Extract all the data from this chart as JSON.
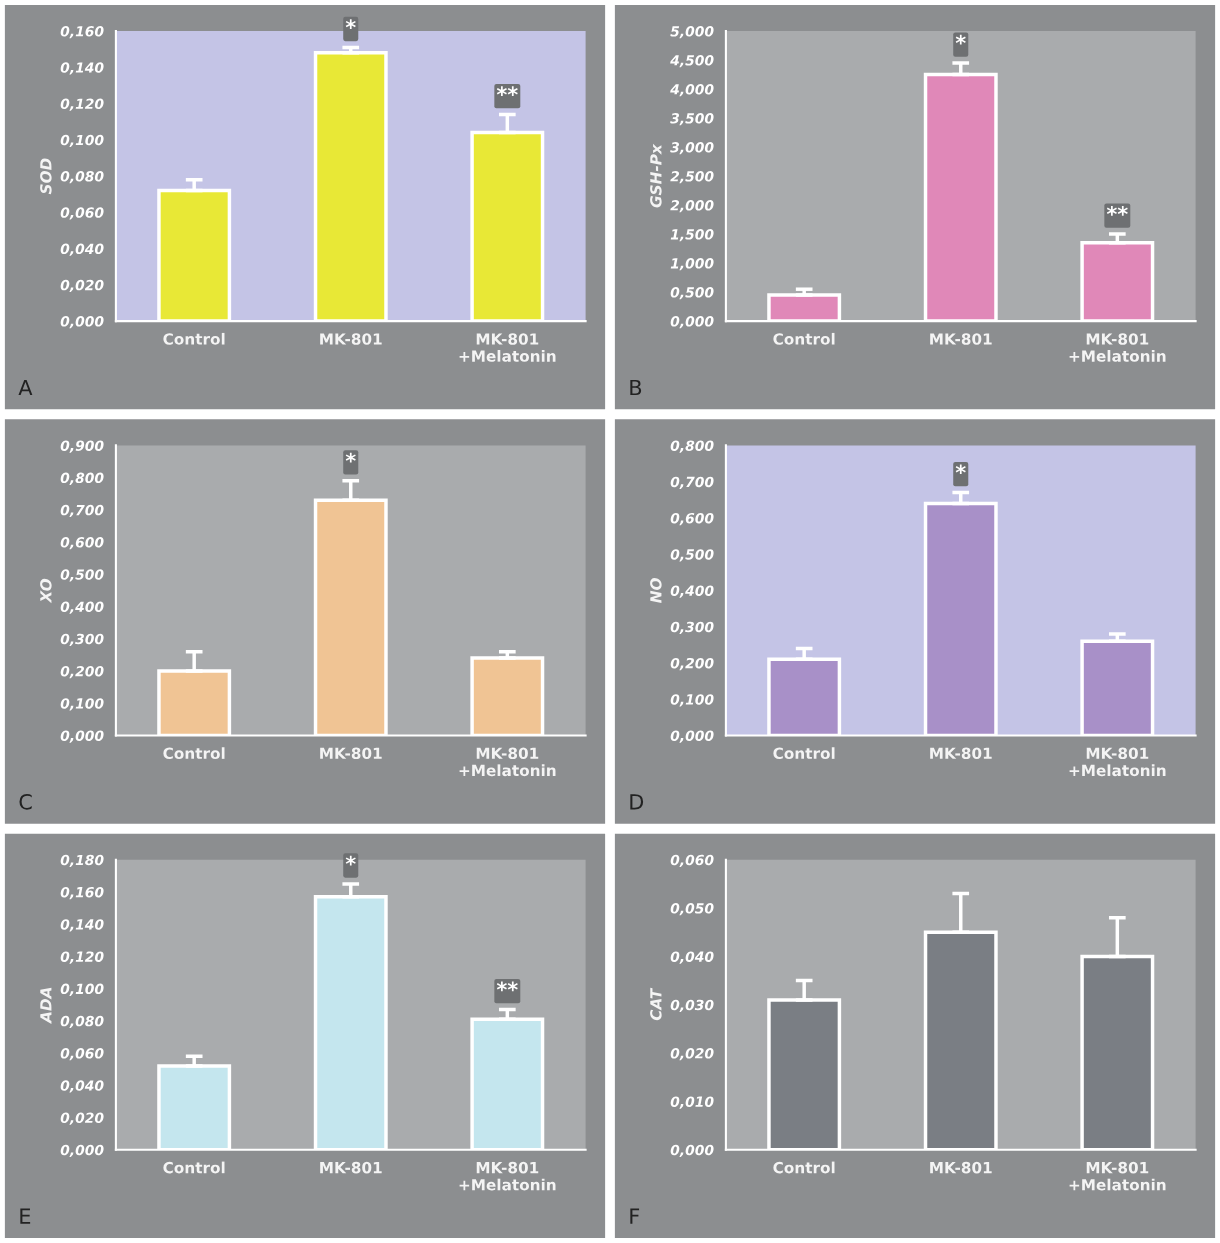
{
  "chart_data": [
    {
      "type": "bar",
      "ylabel": "SOD",
      "categories": [
        "Control",
        "MK-801",
        "MK-801\n+Melatonin"
      ],
      "values": [
        0.072,
        0.148,
        0.104
      ],
      "errors": [
        [
          0.072,
          0.078
        ],
        [
          0.148,
          0.151
        ],
        [
          0.104,
          0.114
        ]
      ],
      "color": "#e8e836",
      "ylim": [
        0,
        0.16
      ],
      "yticks": [
        {
          "value": 0,
          "label": "0,000"
        },
        {
          "value": 0.02,
          "label": "0,020"
        },
        {
          "value": 0.04,
          "label": "0,040"
        },
        {
          "value": 0.06,
          "label": "0,060"
        },
        {
          "value": 0.08,
          "label": "0,080"
        },
        {
          "value": 0.1,
          "label": "0,100"
        },
        {
          "value": 0.12,
          "label": "0,120"
        },
        {
          "value": 0.14,
          "label": "0,140"
        },
        {
          "value": 0.16,
          "label": "0,160"
        }
      ],
      "annotations": [
        {
          "text": "*",
          "x": "MK-801",
          "y": 0.151
        },
        {
          "text": "**",
          "x": "MK-801\n+Melatonin",
          "y": 0.114
        },
        "A"
      ]
    },
    {
      "type": "bar",
      "ylabel": "GSH-Px",
      "categories": [
        "Control",
        "MK-801",
        "MK-801\n+Melatonin"
      ],
      "values": [
        0.45,
        4.25,
        1.35
      ],
      "errors": [
        [
          0.45,
          0.55
        ],
        [
          4.25,
          4.45
        ],
        [
          1.35,
          1.5
        ]
      ],
      "color": "#e088b8",
      "ylim": [
        0,
        5
      ],
      "yticks": [
        {
          "value": 0,
          "label": "0,000"
        },
        {
          "value": 0.5,
          "label": "0,500"
        },
        {
          "value": 1,
          "label": "1,000"
        },
        {
          "value": 1.5,
          "label": "1,500"
        },
        {
          "value": 2,
          "label": "2,000"
        },
        {
          "value": 2.5,
          "label": "2,500"
        },
        {
          "value": 3,
          "label": "3,000"
        },
        {
          "value": 3.5,
          "label": "3,500"
        },
        {
          "value": 4,
          "label": "4,000"
        },
        {
          "value": 4.5,
          "label": "4,500"
        },
        {
          "value": 5,
          "label": "5,000"
        }
      ],
      "annotations": [
        {
          "text": "*",
          "x": "MK-801",
          "y": 4.45
        },
        {
          "text": "**",
          "x": "MK-801\n+Melatonin",
          "y": 1.5
        },
        "B"
      ]
    },
    {
      "type": "bar",
      "ylabel": "XO",
      "categories": [
        "Control",
        "MK-801",
        "MK-801\n+Melatonin"
      ],
      "values": [
        0.2,
        0.73,
        0.24
      ],
      "errors": [
        [
          0.2,
          0.26
        ],
        [
          0.73,
          0.79
        ],
        [
          0.24,
          0.26
        ]
      ],
      "color": "#f0c494",
      "ylim": [
        0,
        0.9
      ],
      "yticks": [
        {
          "value": 0,
          "label": "0,000"
        },
        {
          "value": 0.1,
          "label": "0,100"
        },
        {
          "value": 0.2,
          "label": "0,200"
        },
        {
          "value": 0.3,
          "label": "0,300"
        },
        {
          "value": 0.4,
          "label": "0,400"
        },
        {
          "value": 0.5,
          "label": "0,500"
        },
        {
          "value": 0.6,
          "label": "0,600"
        },
        {
          "value": 0.7,
          "label": "0,700"
        },
        {
          "value": 0.8,
          "label": "0,800"
        },
        {
          "value": 0.9,
          "label": "0,900"
        }
      ],
      "annotations": [
        {
          "text": "*",
          "x": "MK-801",
          "y": 0.79
        },
        "C"
      ]
    },
    {
      "type": "bar",
      "ylabel": "NO",
      "categories": [
        "Control",
        "MK-801",
        "MK-801\n+Melatonin"
      ],
      "values": [
        0.21,
        0.64,
        0.26
      ],
      "errors": [
        [
          0.21,
          0.24
        ],
        [
          0.64,
          0.67
        ],
        [
          0.26,
          0.28
        ]
      ],
      "color": "#a890c8",
      "ylim": [
        0,
        0.8
      ],
      "yticks": [
        {
          "value": 0,
          "label": "0,000"
        },
        {
          "value": 0.1,
          "label": "0,100"
        },
        {
          "value": 0.2,
          "label": "0,200"
        },
        {
          "value": 0.3,
          "label": "0,300"
        },
        {
          "value": 0.4,
          "label": "0,400"
        },
        {
          "value": 0.5,
          "label": "0,500"
        },
        {
          "value": 0.6,
          "label": "0,600"
        },
        {
          "value": 0.7,
          "label": "0,700"
        },
        {
          "value": 0.8,
          "label": "0,800"
        }
      ],
      "annotations": [
        {
          "text": "*",
          "x": "MK-801",
          "y": 0.67
        },
        "D"
      ]
    },
    {
      "type": "bar",
      "ylabel": "ADA",
      "categories": [
        "Control",
        "MK-801",
        "MK-801\n+Melatonin"
      ],
      "values": [
        0.052,
        0.157,
        0.081
      ],
      "errors": [
        [
          0.052,
          0.058
        ],
        [
          0.157,
          0.165
        ],
        [
          0.081,
          0.087
        ]
      ],
      "color": "#c4e6ee",
      "ylim": [
        0,
        0.18
      ],
      "yticks": [
        {
          "value": 0,
          "label": "0,000"
        },
        {
          "value": 0.02,
          "label": "0,020"
        },
        {
          "value": 0.04,
          "label": "0,040"
        },
        {
          "value": 0.06,
          "label": "0,060"
        },
        {
          "value": 0.08,
          "label": "0,080"
        },
        {
          "value": 0.1,
          "label": "0,100"
        },
        {
          "value": 0.12,
          "label": "0,120"
        },
        {
          "value": 0.14,
          "label": "0,140"
        },
        {
          "value": 0.16,
          "label": "0,160"
        },
        {
          "value": 0.18,
          "label": "0,180"
        }
      ],
      "annotations": [
        {
          "text": "*",
          "x": "MK-801",
          "y": 0.165
        },
        {
          "text": "**",
          "x": "MK-801\n+Melatonin",
          "y": 0.087
        },
        "E"
      ]
    },
    {
      "type": "bar",
      "ylabel": "CAT",
      "categories": [
        "Control",
        "MK-801",
        "MK-801\n+Melatonin"
      ],
      "values": [
        0.031,
        0.045,
        0.04
      ],
      "errors": [
        [
          0.031,
          0.035
        ],
        [
          0.045,
          0.053
        ],
        [
          0.04,
          0.048
        ]
      ],
      "color": "#7a7e84",
      "ylim": [
        0,
        0.06
      ],
      "yticks": [
        {
          "value": 0,
          "label": "0,000"
        },
        {
          "value": 0.01,
          "label": "0,010"
        },
        {
          "value": 0.02,
          "label": "0,020"
        },
        {
          "value": 0.03,
          "label": "0,030"
        },
        {
          "value": 0.04,
          "label": "0,040"
        },
        {
          "value": 0.05,
          "label": "0,050"
        },
        {
          "value": 0.06,
          "label": "0,060"
        }
      ],
      "annotations": [
        "F"
      ]
    }
  ]
}
